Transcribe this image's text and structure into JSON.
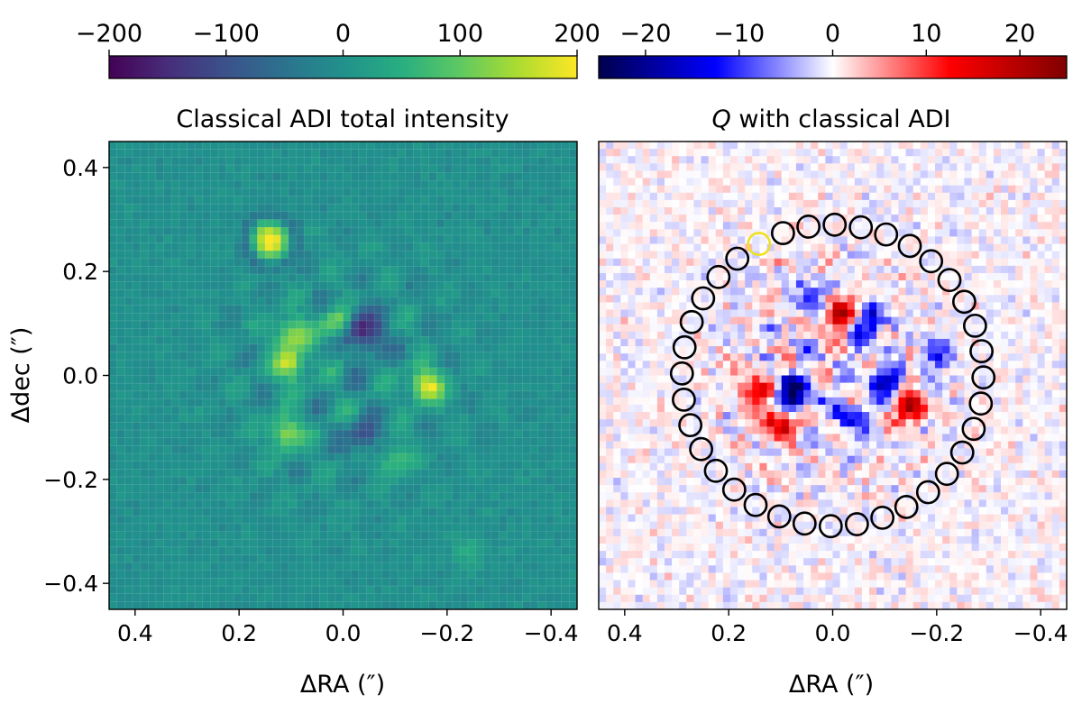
{
  "chart_data": [
    {
      "type": "heatmap",
      "title": "Classical ADI total intensity",
      "xlabel": "ΔRA (″)",
      "ylabel": "Δdec (″)",
      "xlim": [
        0.45,
        -0.45
      ],
      "ylim": [
        -0.45,
        0.45
      ],
      "xticks": [
        0.4,
        0.2,
        0.0,
        -0.2,
        -0.4
      ],
      "xtick_labels": [
        "0.4",
        "0.2",
        "0.0",
        "−0.2",
        "−0.4"
      ],
      "yticks": [
        0.4,
        0.2,
        0.0,
        -0.2,
        -0.4
      ],
      "ytick_labels": [
        "0.4",
        "0.2",
        "0.0",
        "−0.2",
        "−0.4"
      ],
      "colormap": "viridis",
      "colorbar": {
        "range": [
          -200,
          200
        ],
        "ticks": [
          -200,
          -100,
          0,
          100,
          200
        ],
        "tick_labels": [
          "−200",
          "−100",
          "0",
          "100",
          "200"
        ],
        "location": "top"
      },
      "features": [
        {
          "kind": "blob",
          "x": 0.14,
          "y": 0.26,
          "value": 220,
          "label": "bright saturated source"
        },
        {
          "kind": "ring",
          "x": 0.14,
          "y": 0.26,
          "value": -60,
          "label": "dark halo around source"
        },
        {
          "kind": "blob",
          "x": -0.16,
          "y": -0.02,
          "value": 200
        },
        {
          "kind": "blob",
          "x": 0.1,
          "y": 0.08,
          "value": 150
        },
        {
          "kind": "blob",
          "x": 0.1,
          "y": 0.02,
          "value": 170
        },
        {
          "kind": "blob",
          "x": 0.11,
          "y": -0.11,
          "value": 150
        },
        {
          "kind": "blob",
          "x": 0.01,
          "y": 0.1,
          "value": 130
        },
        {
          "kind": "blob",
          "x": -0.03,
          "y": 0.1,
          "value": -130
        },
        {
          "kind": "blob",
          "x": -0.05,
          "y": 0.07,
          "value": -120
        },
        {
          "kind": "blob",
          "x": -0.04,
          "y": -0.12,
          "value": -110
        },
        {
          "kind": "blob",
          "x": -0.1,
          "y": -0.16,
          "value": 90
        },
        {
          "kind": "blob",
          "x": -0.24,
          "y": -0.34,
          "value": 40,
          "label": "faint lower-right glow"
        }
      ]
    },
    {
      "type": "heatmap",
      "title": "Q with classical ADI",
      "title_italic_prefix": "Q",
      "title_suffix": " with classical ADI",
      "xlabel": "ΔRA (″)",
      "xlim": [
        0.45,
        -0.45
      ],
      "ylim": [
        -0.45,
        0.45
      ],
      "xticks": [
        0.4,
        0.2,
        0.0,
        -0.2,
        -0.4
      ],
      "xtick_labels": [
        "0.4",
        "0.2",
        "0.0",
        "−0.2",
        "−0.4"
      ],
      "colormap": "seismic",
      "colorbar": {
        "range": [
          -25,
          25
        ],
        "ticks": [
          -20,
          -10,
          0,
          10,
          20
        ],
        "tick_labels": [
          "−20",
          "−10",
          "0",
          "10",
          "20"
        ],
        "location": "top"
      },
      "features": [
        {
          "kind": "blob",
          "x": -0.01,
          "y": 0.12,
          "value": 20
        },
        {
          "kind": "blob",
          "x": -0.15,
          "y": -0.06,
          "value": 20
        },
        {
          "kind": "blob",
          "x": 0.1,
          "y": -0.09,
          "value": 18
        },
        {
          "kind": "blob",
          "x": 0.15,
          "y": -0.03,
          "value": 14
        },
        {
          "kind": "blob",
          "x": 0.08,
          "y": -0.04,
          "value": -24
        },
        {
          "kind": "blob",
          "x": -0.07,
          "y": 0.1,
          "value": -14
        },
        {
          "kind": "blob",
          "x": -0.1,
          "y": -0.01,
          "value": -16
        },
        {
          "kind": "blob",
          "x": -0.04,
          "y": -0.08,
          "value": -14
        },
        {
          "kind": "blob",
          "x": 0.04,
          "y": 0.15,
          "value": -12
        },
        {
          "kind": "blob",
          "x": -0.2,
          "y": 0.04,
          "value": -10
        }
      ],
      "apertures": {
        "count": 36,
        "center": [
          0.0,
          0.0
        ],
        "radius_arcsec": 0.29,
        "aperture_radius_arcsec": 0.021,
        "edge_color": "#000000",
        "highlighted": {
          "x": 0.14,
          "y": 0.25,
          "edge_color": "#f0e020"
        }
      }
    }
  ]
}
